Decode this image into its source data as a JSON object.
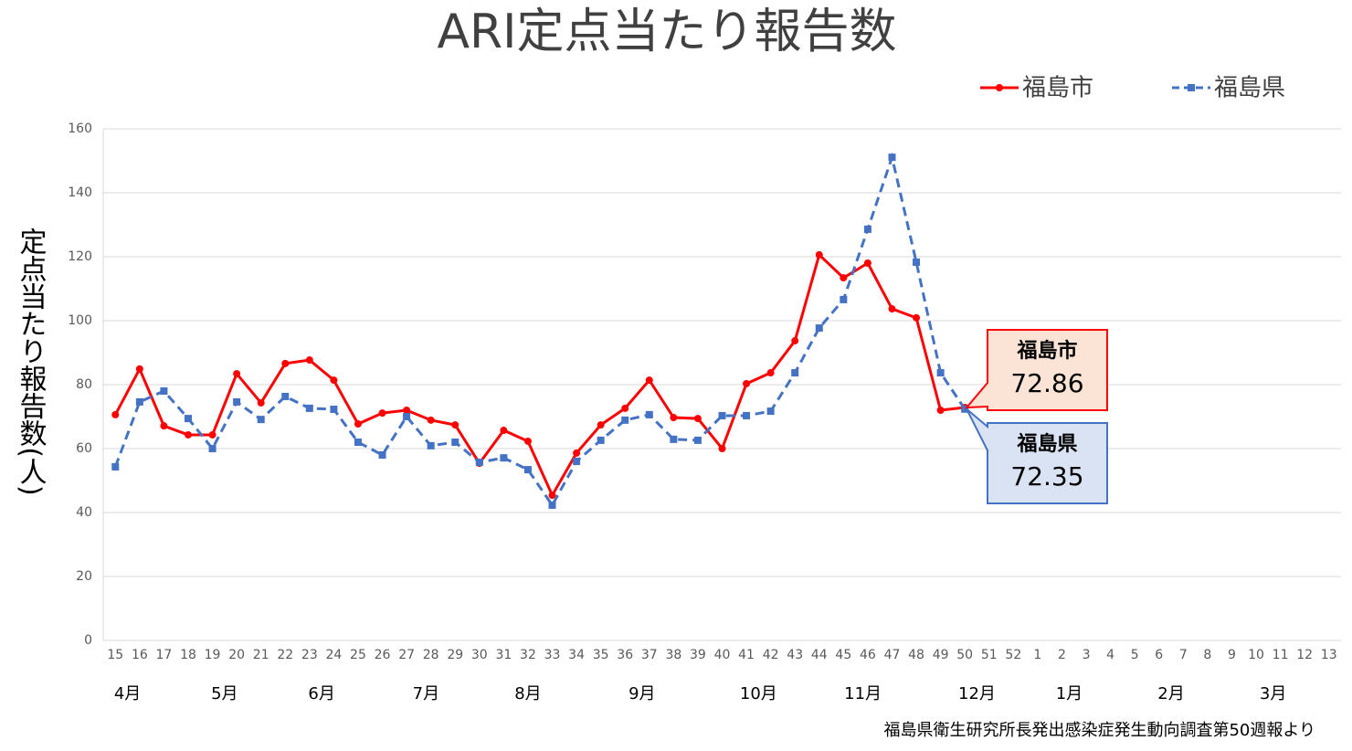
{
  "chart_data": {
    "type": "line",
    "title": "ARI定点当たり報告数",
    "y_label": "定点当たり報告数(人)",
    "categories": [
      "15",
      "16",
      "17",
      "18",
      "19",
      "20",
      "21",
      "22",
      "23",
      "24",
      "25",
      "26",
      "27",
      "28",
      "29",
      "30",
      "31",
      "32",
      "33",
      "34",
      "35",
      "36",
      "37",
      "38",
      "39",
      "40",
      "41",
      "42",
      "43",
      "44",
      "45",
      "46",
      "47",
      "48",
      "49",
      "50",
      "51",
      "52",
      "1",
      "2",
      "3",
      "4",
      "5",
      "6",
      "7",
      "8",
      "9",
      "10",
      "11",
      "12",
      "13"
    ],
    "month_labels": [
      "4月",
      "5月",
      "6月",
      "7月",
      "8月",
      "9月",
      "10月",
      "11月",
      "12月",
      "1月",
      "2月",
      "3月"
    ],
    "series": [
      {
        "name": "福島市",
        "color": "#ff0000",
        "values": [
          70.6,
          84.9,
          67.1,
          64.3,
          64.3,
          83.4,
          74.3,
          86.6,
          87.7,
          81.4,
          67.7,
          71.1,
          72,
          68.9,
          67.4,
          55.4,
          65.7,
          62.3,
          45.4,
          58.6,
          67.4,
          72.6,
          81.4,
          69.7,
          69.4,
          60,
          80.3,
          83.7,
          93.7,
          120.6,
          113.4,
          118,
          103.7,
          100.9,
          72,
          72.86,
          null,
          null,
          null,
          null,
          null,
          null,
          null,
          null,
          null,
          null,
          null,
          null,
          null,
          null,
          null
        ]
      },
      {
        "name": "福島県",
        "color": "#4472c4",
        "values": [
          54.3,
          74.6,
          78,
          69.4,
          60,
          74.6,
          69.1,
          76.3,
          72.6,
          72.3,
          62,
          58,
          70,
          60.9,
          62,
          55.7,
          57.1,
          53.4,
          42.3,
          56,
          62.6,
          68.9,
          70.6,
          62.9,
          62.6,
          70.3,
          70.3,
          71.7,
          83.7,
          97.7,
          106.6,
          128.6,
          151.1,
          118.3,
          83.7,
          72.35,
          null,
          null,
          null,
          null,
          null,
          null,
          null,
          null,
          null,
          null,
          null,
          null,
          null,
          null,
          null
        ]
      }
    ],
    "ylim": [
      0,
      160
    ],
    "yticks": [
      0,
      20,
      40,
      60,
      80,
      100,
      120,
      140,
      160
    ],
    "grid": true,
    "source": "福島県衛生研究所長発出感染症発生動向調査第50週報より"
  }
}
